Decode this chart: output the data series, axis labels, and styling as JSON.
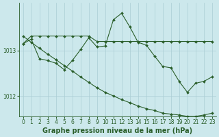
{
  "xlabel": "Graphe pression niveau de la mer (hPa)",
  "background_color": "#cce8ec",
  "plot_bg_color": "#cce8ec",
  "grid_color": "#aacdd4",
  "line_color": "#2a5e2a",
  "xlim": [
    -0.5,
    23.5
  ],
  "ylim": [
    1011.55,
    1014.05
  ],
  "yticks": [
    1012,
    1013
  ],
  "xticks": [
    0,
    1,
    2,
    3,
    4,
    5,
    6,
    7,
    8,
    9,
    10,
    11,
    12,
    13,
    14,
    15,
    16,
    17,
    18,
    19,
    20,
    21,
    22,
    23
  ],
  "line1_x": [
    0,
    1,
    2,
    3,
    4,
    5,
    6,
    7,
    8,
    9,
    10,
    11,
    12,
    13,
    14,
    15,
    16,
    17,
    18,
    19,
    20,
    21,
    22,
    23
  ],
  "line1_y": [
    1013.15,
    1013.32,
    1013.32,
    1013.32,
    1013.32,
    1013.32,
    1013.32,
    1013.32,
    1013.32,
    1013.2,
    1013.2,
    1013.2,
    1013.2,
    1013.2,
    1013.2,
    1013.2,
    1013.2,
    1013.2,
    1013.2,
    1013.2,
    1013.2,
    1013.2,
    1013.2,
    1013.2
  ],
  "line2_x": [
    0,
    1,
    2,
    3,
    4,
    5,
    6,
    7,
    8,
    9,
    10,
    11,
    12,
    13,
    14,
    15,
    16,
    17,
    18,
    19,
    20,
    21,
    22,
    23
  ],
  "line2_y": [
    1013.15,
    1013.25,
    1012.82,
    1012.78,
    1012.72,
    1012.58,
    1012.78,
    1013.02,
    1013.28,
    1013.08,
    1013.1,
    1013.68,
    1013.82,
    1013.52,
    1013.18,
    1013.12,
    1012.88,
    1012.65,
    1012.62,
    1012.32,
    1012.08,
    1012.28,
    1012.32,
    1012.42
  ],
  "line3_x": [
    0,
    1,
    2,
    3,
    4,
    5,
    6,
    7,
    8,
    9,
    10,
    11,
    12,
    13,
    14,
    15,
    16,
    17,
    18,
    19,
    20,
    21,
    22,
    23
  ],
  "line3_y": [
    1013.32,
    1013.18,
    1013.05,
    1012.92,
    1012.8,
    1012.67,
    1012.55,
    1012.42,
    1012.3,
    1012.18,
    1012.08,
    1012.0,
    1011.92,
    1011.85,
    1011.78,
    1011.72,
    1011.68,
    1011.62,
    1011.6,
    1011.58,
    1011.55,
    1011.55,
    1011.58,
    1011.62
  ],
  "marker": "D",
  "markersize": 2.0,
  "linewidth": 0.8,
  "tick_fontsize": 5.5,
  "xlabel_fontsize": 7.0
}
